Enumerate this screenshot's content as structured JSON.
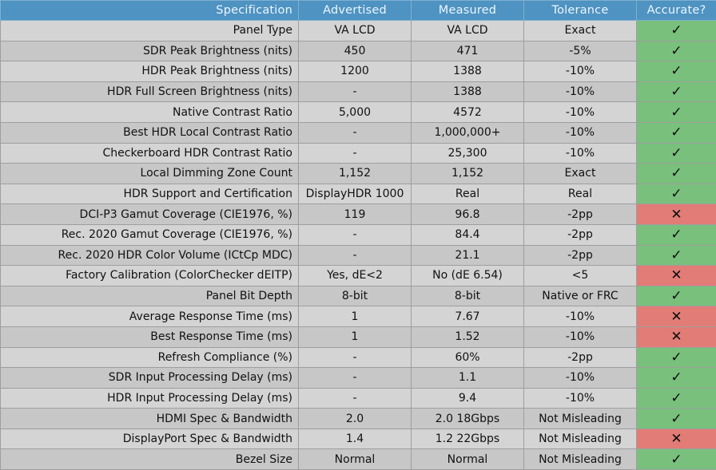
{
  "headers": [
    "Specification",
    "Advertised",
    "Measured",
    "Tolerance",
    "Accurate?"
  ],
  "symbols": {
    "yes": "✓",
    "no": "✕"
  },
  "colors": {
    "header_bg": "#4e93c2",
    "accurate_bg": "#79c07c",
    "inaccurate_bg": "#e27c76",
    "row_light": "#d4d4d4",
    "row_dark": "#c7c7c7"
  },
  "rows": [
    {
      "spec": "Panel Type",
      "advertised": "VA LCD",
      "measured": "VA LCD",
      "tolerance": "Exact",
      "accurate": true
    },
    {
      "spec": "SDR Peak Brightness (nits)",
      "advertised": "450",
      "measured": "471",
      "tolerance": "-5%",
      "accurate": true
    },
    {
      "spec": "HDR Peak Brightness (nits)",
      "advertised": "1200",
      "measured": "1388",
      "tolerance": "-10%",
      "accurate": true
    },
    {
      "spec": "HDR Full Screen Brightness (nits)",
      "advertised": "-",
      "measured": "1388",
      "tolerance": "-10%",
      "accurate": true
    },
    {
      "spec": "Native Contrast Ratio",
      "advertised": "5,000",
      "measured": "4572",
      "tolerance": "-10%",
      "accurate": true
    },
    {
      "spec": "Best HDR Local Contrast Ratio",
      "advertised": "-",
      "measured": "1,000,000+",
      "tolerance": "-10%",
      "accurate": true
    },
    {
      "spec": "Checkerboard HDR Contrast Ratio",
      "advertised": "-",
      "measured": "25,300",
      "tolerance": "-10%",
      "accurate": true
    },
    {
      "spec": "Local Dimming Zone Count",
      "advertised": "1,152",
      "measured": "1,152",
      "tolerance": "Exact",
      "accurate": true
    },
    {
      "spec": "HDR Support and Certification",
      "advertised": "DisplayHDR 1000",
      "measured": "Real",
      "tolerance": "Real",
      "accurate": true
    },
    {
      "spec": "DCI-P3 Gamut Coverage (CIE1976, %)",
      "advertised": "119",
      "measured": "96.8",
      "tolerance": "-2pp",
      "accurate": false
    },
    {
      "spec": "Rec. 2020 Gamut Coverage (CIE1976, %)",
      "advertised": "-",
      "measured": "84.4",
      "tolerance": "-2pp",
      "accurate": true
    },
    {
      "spec": "Rec. 2020 HDR Color Volume (ICtCp MDC)",
      "advertised": "-",
      "measured": "21.1",
      "tolerance": "-2pp",
      "accurate": true
    },
    {
      "spec": "Factory Calibration (ColorChecker dEITP)",
      "advertised": "Yes, dE<2",
      "measured": "No (dE 6.54)",
      "tolerance": "<5",
      "accurate": false
    },
    {
      "spec": "Panel Bit Depth",
      "advertised": "8-bit",
      "measured": "8-bit",
      "tolerance": "Native or FRC",
      "accurate": true
    },
    {
      "spec": "Average Response Time (ms)",
      "advertised": "1",
      "measured": "7.67",
      "tolerance": "-10%",
      "accurate": false
    },
    {
      "spec": "Best Response Time (ms)",
      "advertised": "1",
      "measured": "1.52",
      "tolerance": "-10%",
      "accurate": false
    },
    {
      "spec": "Refresh Compliance (%)",
      "advertised": "-",
      "measured": "60%",
      "tolerance": "-2pp",
      "accurate": true
    },
    {
      "spec": "SDR Input Processing Delay (ms)",
      "advertised": "-",
      "measured": "1.1",
      "tolerance": "-10%",
      "accurate": true
    },
    {
      "spec": "HDR Input Processing Delay (ms)",
      "advertised": "-",
      "measured": "9.4",
      "tolerance": "-10%",
      "accurate": true
    },
    {
      "spec": "HDMI Spec & Bandwidth",
      "advertised": "2.0",
      "measured": "2.0 18Gbps",
      "tolerance": "Not Misleading",
      "accurate": true
    },
    {
      "spec": "DisplayPort Spec & Bandwidth",
      "advertised": "1.4",
      "measured": "1.2 22Gbps",
      "tolerance": "Not Misleading",
      "accurate": false
    },
    {
      "spec": "Bezel Size",
      "advertised": "Normal",
      "measured": "Normal",
      "tolerance": "Not Misleading",
      "accurate": true
    }
  ]
}
